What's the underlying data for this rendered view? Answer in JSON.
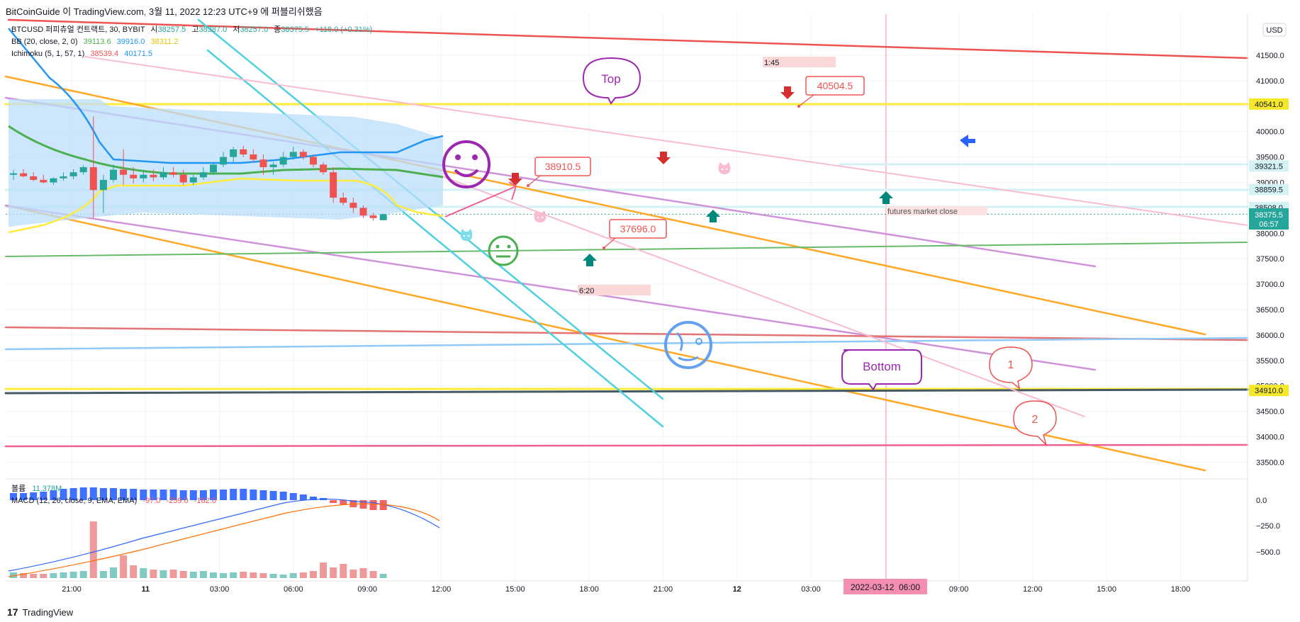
{
  "page_header": "BitCoinGuide 이 TradingView.com, 3월 11, 2022 12:23 UTC+9 에 퍼블리쉬했음",
  "footer": {
    "logo_glyph": "17",
    "brand": "TradingView"
  },
  "legend": {
    "line1": {
      "symbol": "BTCUSD 퍼피츄얼 컨트랙트, 30, BYBIT",
      "o_label": "시",
      "o": "38257.5",
      "h_label": "고",
      "h": "38387.0",
      "l_label": "저",
      "l": "38257.0",
      "c_label": "종",
      "c": "38375.5",
      "chg": "+118.0 (+0.31%)"
    },
    "line2": {
      "label": "BB (20, close, 2, 0)",
      "v1": "39113.6",
      "v2": "39916.0",
      "v3": "38311.2"
    },
    "line3": {
      "label": "Ichimoku (5, 1, 57, 1)",
      "v1": "38539.4",
      "v2": "40171.5"
    }
  },
  "lower_legend": {
    "vol_label": "볼륨",
    "vol_value": "11.378M",
    "macd_label": "MACD (12, 26, close, 9, EMA, EMA)",
    "macd_v1": "-97.0",
    "macd_v2": "-259.0",
    "macd_v3": "-162.0"
  },
  "currency": "USD",
  "annotations": {
    "top": "Top",
    "bottom": "Bottom",
    "price1": "40504.5",
    "price2": "38910.5",
    "price3": "37696.0",
    "time1": "1:45",
    "time2": "6:20",
    "futures": "futures market close",
    "circle1": "1",
    "circle2": "2",
    "crosshair_date": "2022-03-12",
    "crosshair_time": "06:00"
  },
  "price_tags": [
    {
      "value": "40541.0",
      "bg": "#f5e72a",
      "fg": "#131722"
    },
    {
      "value": "39321.5",
      "bg": "#d4f1f4",
      "fg": "#131722"
    },
    {
      "value": "38859.5",
      "bg": "#d4f1f4",
      "fg": "#131722"
    },
    {
      "value": "38508.0",
      "bg": "#d4f1f4",
      "fg": "#131722"
    },
    {
      "value": "34910.0",
      "bg": "#f5e72a",
      "fg": "#131722"
    }
  ],
  "last_price": {
    "value": "38375.5",
    "countdown": "06:57",
    "bg": "#26a69a"
  },
  "colors": {
    "up": "#26a69a",
    "down": "#ef5350",
    "grid": "#f0f3fa",
    "bb_basis": "#4caf50",
    "bb_upper": "#2196f3",
    "bb_lower": "#ffeb3b",
    "cloud": "#bbdefb",
    "macd": "#2962ff",
    "signal": "#ff6d00"
  },
  "chart_data": {
    "type": "candlestick",
    "symbol": "BTCUSD",
    "timeframe": "30",
    "exchange": "BYBIT",
    "y_ticks": [
      "41500.0",
      "41000.0",
      "40500.0",
      "40000.0",
      "39500.0",
      "39000.0",
      "38500.0",
      "38000.0",
      "37500.0",
      "37000.0",
      "36500.0",
      "36000.0",
      "35500.0",
      "35000.0",
      "34500.0",
      "34000.0",
      "33500.0"
    ],
    "ylim": [
      33150,
      41800
    ],
    "x_ticks": [
      "21:00",
      "11",
      "03:00",
      "06:00",
      "09:00",
      "12:00",
      "15:00",
      "18:00",
      "21:00",
      "12",
      "03:00",
      "06:00",
      "09:00",
      "12:00",
      "15:00",
      "18:00"
    ],
    "candles": [
      [
        39150,
        39250,
        39050,
        39180
      ],
      [
        39180,
        39260,
        39100,
        39120
      ],
      [
        39120,
        39200,
        39020,
        39050
      ],
      [
        39050,
        39150,
        38980,
        39000
      ],
      [
        39000,
        39100,
        38950,
        39080
      ],
      [
        39080,
        39200,
        39030,
        39120
      ],
      [
        39120,
        39260,
        39060,
        39200
      ],
      [
        39200,
        39340,
        39150,
        39300
      ],
      [
        39300,
        40300,
        38300,
        38850
      ],
      [
        38850,
        39150,
        38400,
        39050
      ],
      [
        39050,
        39350,
        39000,
        39250
      ],
      [
        39250,
        39650,
        38950,
        39150
      ],
      [
        39150,
        39300,
        38980,
        39080
      ],
      [
        39080,
        39250,
        39000,
        39150
      ],
      [
        39150,
        39250,
        39020,
        39100
      ],
      [
        39100,
        39300,
        39050,
        39200
      ],
      [
        39200,
        39300,
        39100,
        39150
      ],
      [
        39150,
        39250,
        38950,
        39000
      ],
      [
        39000,
        39150,
        38950,
        39100
      ],
      [
        39100,
        39300,
        39050,
        39200
      ],
      [
        39200,
        39400,
        39150,
        39350
      ],
      [
        39350,
        39600,
        39300,
        39500
      ],
      [
        39500,
        39700,
        39400,
        39650
      ],
      [
        39650,
        39720,
        39500,
        39550
      ],
      [
        39550,
        39650,
        39400,
        39450
      ],
      [
        39450,
        39550,
        39150,
        39300
      ],
      [
        39300,
        39400,
        39150,
        39350
      ],
      [
        39350,
        39600,
        39300,
        39500
      ],
      [
        39500,
        39700,
        39450,
        39600
      ],
      [
        39600,
        39650,
        39450,
        39500
      ],
      [
        39500,
        39550,
        39300,
        39350
      ],
      [
        39350,
        39400,
        39150,
        39200
      ],
      [
        39200,
        39300,
        38600,
        38700
      ],
      [
        38700,
        38800,
        38550,
        38600
      ],
      [
        38600,
        38700,
        38400,
        38500
      ],
      [
        38500,
        38550,
        38300,
        38350
      ],
      [
        38350,
        38400,
        38250,
        38300
      ],
      [
        38257.5,
        38387,
        38257,
        38375.5
      ]
    ],
    "volume_labels": [
      "11.378M"
    ],
    "macd_ticks": [
      "0.0",
      "−250.0",
      "−500.0"
    ]
  }
}
